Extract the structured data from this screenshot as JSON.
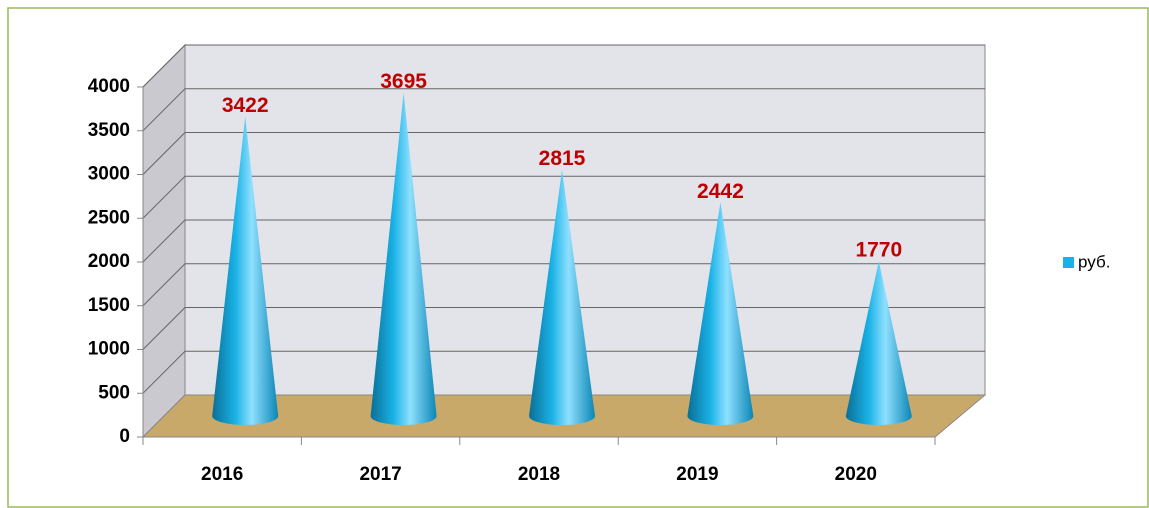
{
  "chart_data": {
    "type": "bar",
    "categories": [
      "2016",
      "2017",
      "2018",
      "2019",
      "2020"
    ],
    "series": [
      {
        "name": "руб.",
        "color": "#1ab2e6",
        "values": [
          3422,
          3695,
          2815,
          2442,
          1770
        ]
      }
    ],
    "ylim": [
      0,
      4000
    ],
    "yticks": [
      0,
      500,
      1000,
      1500,
      2000,
      2500,
      3000,
      3500,
      4000
    ],
    "grid": true,
    "legend": "right"
  }
}
